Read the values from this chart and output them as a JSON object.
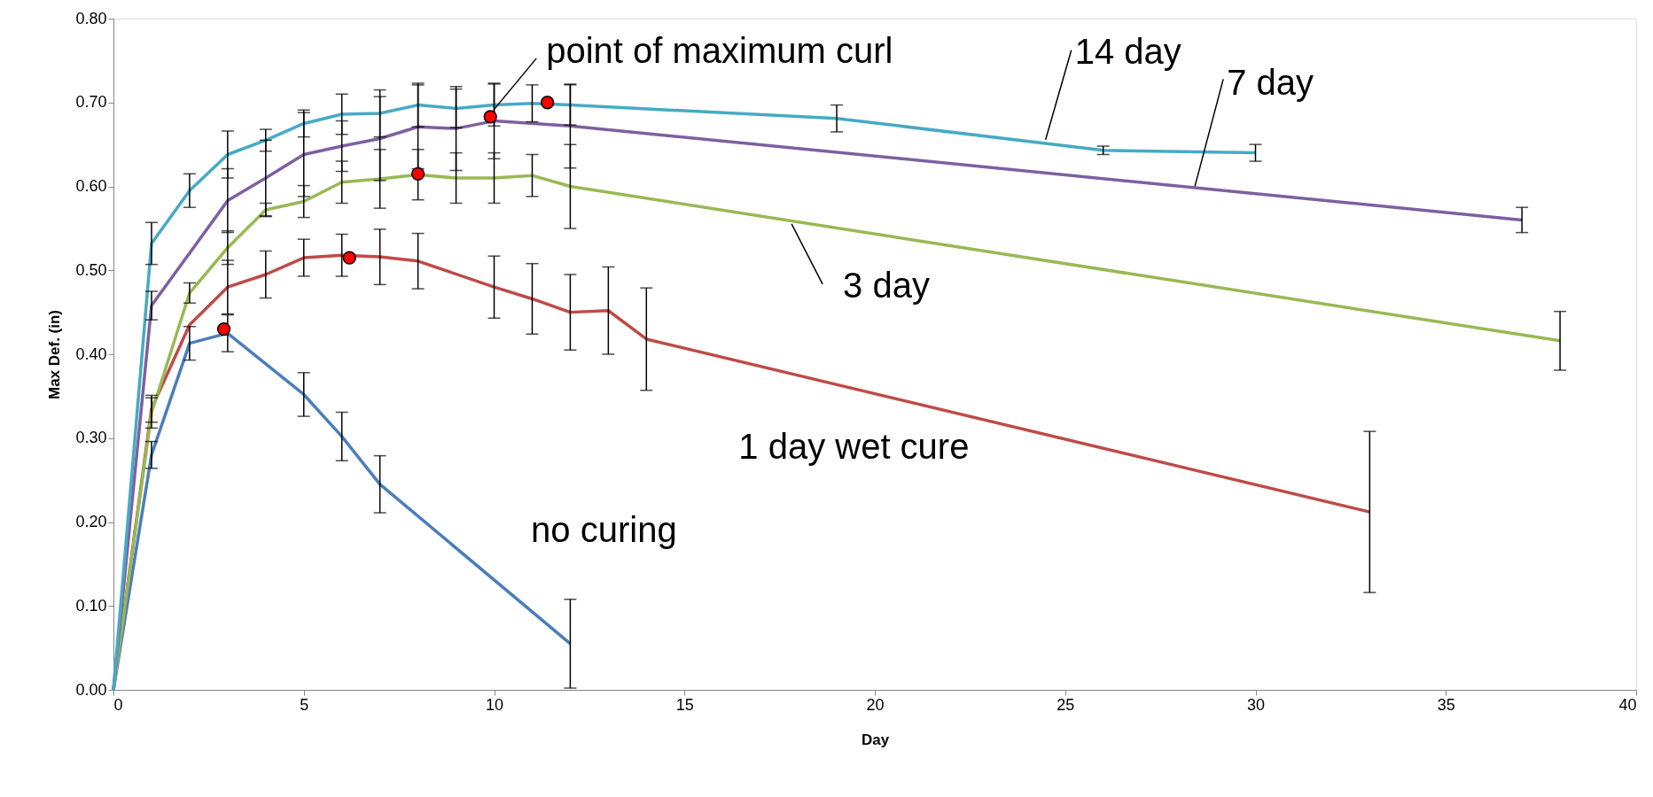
{
  "chart_data": {
    "type": "line",
    "xlabel": "Day",
    "ylabel": "Max Def. (in)",
    "xlim": [
      0,
      40
    ],
    "xticks": [
      0,
      5,
      10,
      15,
      20,
      25,
      30,
      35,
      40
    ],
    "ylim": [
      0,
      0.8
    ],
    "yticks": [
      {
        "value": 0,
        "label": "0.00"
      },
      {
        "value": 0.1,
        "label": "0.10"
      },
      {
        "value": 0.2,
        "label": "0.20"
      },
      {
        "value": 0.3,
        "label": "0.30"
      },
      {
        "value": 0.4,
        "label": "0.40"
      },
      {
        "value": 0.5,
        "label": "0.50"
      },
      {
        "value": 0.6,
        "label": "0.60"
      },
      {
        "value": 0.7,
        "label": "0.70"
      },
      {
        "value": 0.8,
        "label": "0.80"
      }
    ],
    "grid": false,
    "marker": "none",
    "line_style": "solid",
    "series": [
      {
        "name": "no curing",
        "color": "#4a7ebb",
        "x": [
          0,
          1,
          2,
          3,
          5,
          6,
          7,
          12
        ],
        "values": [
          0,
          0.28,
          0.413,
          0.425,
          0.352,
          0.302,
          0.245,
          0.055
        ],
        "errors": [
          null,
          0.016,
          0.02,
          0.022,
          0.026,
          0.029,
          0.034,
          0.053
        ]
      },
      {
        "name": "1 day wet cure",
        "color": "#be4b48",
        "x": [
          0,
          1,
          2,
          3,
          4,
          5,
          6,
          7,
          8,
          10,
          11,
          12,
          13,
          14,
          33
        ],
        "values": [
          0,
          0.335,
          0.435,
          0.48,
          0.495,
          0.515,
          0.518,
          0.516,
          0.511,
          0.48,
          0.466,
          0.45,
          0.452,
          0.418,
          0.212
        ],
        "errors": [
          null,
          0.016,
          null,
          0.032,
          0.028,
          0.022,
          0.025,
          0.033,
          0.033,
          0.037,
          0.042,
          0.045,
          0.052,
          0.061,
          0.096
        ]
      },
      {
        "name": "3 day",
        "color": "#98b954",
        "x": [
          0,
          1,
          2,
          3,
          4,
          5,
          6,
          7,
          8,
          9,
          10,
          11,
          12,
          38
        ],
        "values": [
          0,
          0.33,
          0.473,
          0.527,
          0.572,
          0.582,
          0.605,
          0.609,
          0.614,
          0.61,
          0.61,
          0.613,
          0.6,
          0.416
        ],
        "errors": [
          null,
          0.018,
          0.012,
          0.02,
          0.008,
          0.019,
          0.025,
          0.035,
          0.03,
          0.03,
          0.03,
          0.025,
          0.05,
          0.035
        ]
      },
      {
        "name": "7 day",
        "color": "#7d60a0",
        "x": [
          0,
          1,
          3,
          4,
          5,
          6,
          7,
          8,
          9,
          10,
          12,
          37
        ],
        "values": [
          0,
          0.458,
          0.583,
          0.61,
          0.638,
          0.648,
          0.657,
          0.671,
          0.669,
          0.678,
          0.672,
          0.56
        ],
        "errors": [
          null,
          0.017,
          0.038,
          0.045,
          0.05,
          0.03,
          0.05,
          0.05,
          0.05,
          0.045,
          0.05,
          0.015
        ]
      },
      {
        "name": "14 day",
        "color": "#46aac5",
        "x": [
          0,
          1,
          2,
          3,
          4,
          5,
          6,
          7,
          8,
          9,
          10,
          11,
          12,
          19,
          26,
          30
        ],
        "values": [
          0,
          0.532,
          0.595,
          0.638,
          0.655,
          0.675,
          0.686,
          0.687,
          0.697,
          0.693,
          0.697,
          0.699,
          0.697,
          0.681,
          0.643,
          0.64
        ],
        "errors": [
          null,
          0.025,
          0.02,
          0.028,
          0.013,
          0.016,
          0.024,
          0.028,
          0.026,
          0.023,
          0.025,
          0.022,
          0.024,
          0.016,
          0.005,
          0.01
        ]
      },
      {
        "type": "scatter",
        "marker": "circle",
        "color": "#ff0000",
        "x": [
          2.9,
          6.2,
          8,
          9.9,
          11.4
        ],
        "values": [
          0.43,
          0.515,
          0.615,
          0.683,
          0.7
        ]
      }
    ],
    "annotations": [
      {
        "text": "point of maximum curl",
        "x": 9.9,
        "y": 0.683
      }
    ]
  }
}
